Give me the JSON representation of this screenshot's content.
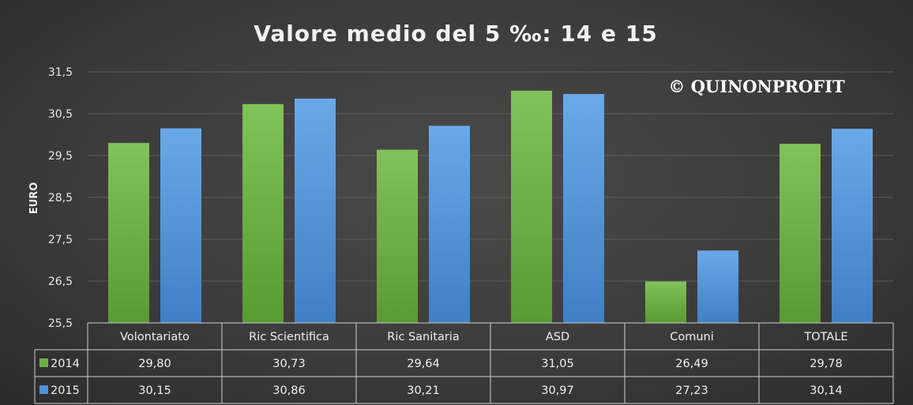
{
  "chart_data": {
    "type": "bar",
    "title": "Valore medio del 5 ‰: 14 e 15",
    "ylabel": "EURO",
    "xlabel": "",
    "ylim": [
      25.5,
      31.5
    ],
    "yticks": [
      "25,5",
      "26,5",
      "27,5",
      "28,5",
      "29,5",
      "30,5",
      "31,5"
    ],
    "categories": [
      "Volontariato",
      "Ric Scientifica",
      "Ric Sanitaria",
      "ASD",
      "Comuni",
      "TOTALE"
    ],
    "series": [
      {
        "name": "2014",
        "color": "#6fae46",
        "values": [
          29.8,
          30.73,
          29.64,
          31.05,
          26.49,
          29.78
        ],
        "labels": [
          "29,80",
          "30,73",
          "29,64",
          "31,05",
          "26,49",
          "29,78"
        ]
      },
      {
        "name": "2015",
        "color": "#4f91d6",
        "values": [
          30.15,
          30.86,
          30.21,
          30.97,
          27.23,
          30.14
        ],
        "labels": [
          "30,15",
          "30,86",
          "30,21",
          "30,97",
          "27,23",
          "30,14"
        ]
      }
    ],
    "grid": true,
    "legend": "data-table",
    "watermark": "© QUINONPROFIT"
  }
}
